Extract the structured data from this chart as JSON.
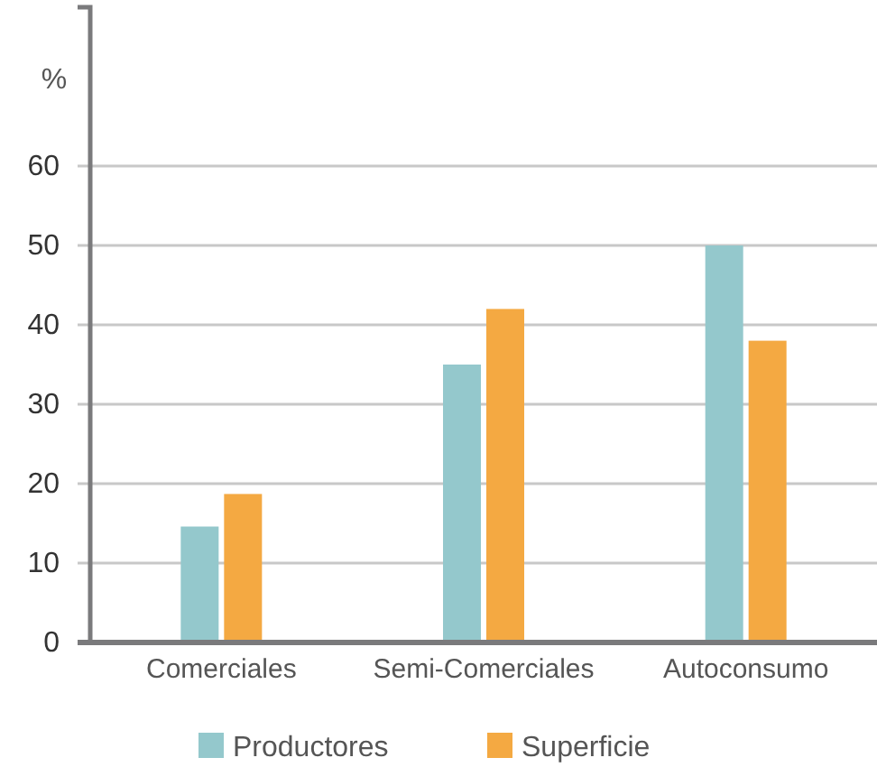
{
  "chart_data": {
    "type": "bar",
    "ylabel": "%",
    "categories": [
      "Comerciales",
      "Semi-Comerciales",
      "Autoconsumo"
    ],
    "series": [
      {
        "name": "Productores",
        "color": "#94c8cc",
        "values": [
          14.6,
          35,
          50
        ]
      },
      {
        "name": "Superficie",
        "color": "#f4a942",
        "values": [
          18.7,
          42,
          38
        ]
      }
    ],
    "ylim": [
      0,
      80
    ],
    "yticks": [
      0,
      10,
      20,
      30,
      40,
      50,
      60
    ],
    "grid": "y",
    "legend": "bottom"
  }
}
